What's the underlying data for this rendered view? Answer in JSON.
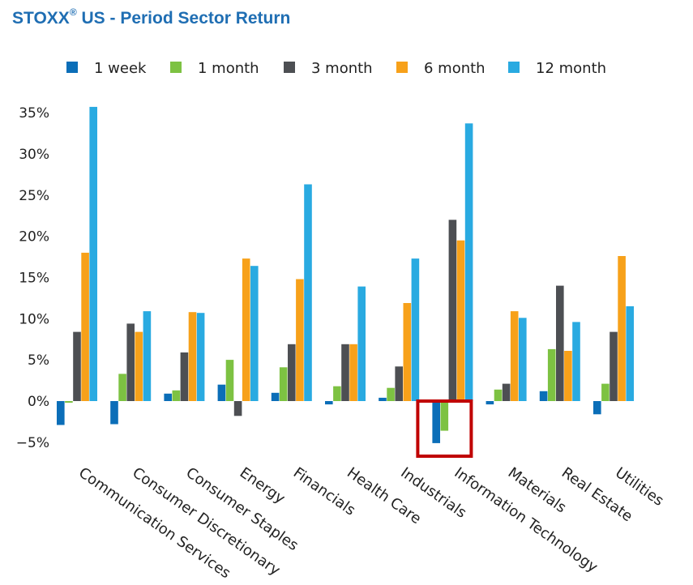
{
  "chart_data": {
    "type": "bar",
    "title_main": "STOXX",
    "title_reg": "®",
    "title_rest": " US - Period Sector Return",
    "ylim": [
      -6,
      37
    ],
    "yticks": [
      {
        "value": 35,
        "label": "35%"
      },
      {
        "value": 30,
        "label": "30%"
      },
      {
        "value": 25,
        "label": "25%"
      },
      {
        "value": 20,
        "label": "20%"
      },
      {
        "value": 15,
        "label": "15%"
      },
      {
        "value": 10,
        "label": "10%"
      },
      {
        "value": 5,
        "label": "5%"
      },
      {
        "value": 0,
        "label": "0%"
      },
      {
        "value": -5,
        "label": "−5%"
      }
    ],
    "categories": [
      "Communication Services",
      "Consumer Discretionary",
      "Consumer Staples",
      "Energy",
      "Financials",
      "Health Care",
      "Industrials",
      "Information Technology",
      "Materials",
      "Real Estate",
      "Utilities"
    ],
    "series": [
      {
        "name": "1 week",
        "color": "#0b6eb8",
        "values": [
          -2.9,
          -2.8,
          0.9,
          2.0,
          1.0,
          -0.4,
          0.4,
          -5.1,
          -0.4,
          1.2,
          -1.6
        ]
      },
      {
        "name": "1 month",
        "color": "#7dc242",
        "values": [
          -0.2,
          3.3,
          1.3,
          5.0,
          4.1,
          1.8,
          1.6,
          -3.6,
          1.4,
          6.3,
          2.1
        ]
      },
      {
        "name": "3 month",
        "color": "#4d4f53",
        "values": [
          8.4,
          9.4,
          5.9,
          -1.8,
          6.9,
          6.9,
          4.2,
          22.0,
          2.1,
          14.0,
          8.4
        ]
      },
      {
        "name": "6 month",
        "color": "#f7a11a",
        "values": [
          18.0,
          8.4,
          10.8,
          17.3,
          14.8,
          6.9,
          11.9,
          19.5,
          10.9,
          6.1,
          17.6
        ]
      },
      {
        "name": "12 month",
        "color": "#29aae1",
        "values": [
          35.7,
          10.9,
          10.7,
          16.4,
          26.3,
          13.9,
          17.3,
          33.7,
          10.1,
          9.6,
          11.5
        ]
      }
    ],
    "highlight": {
      "category": "Information Technology",
      "color": "#c00000"
    }
  }
}
